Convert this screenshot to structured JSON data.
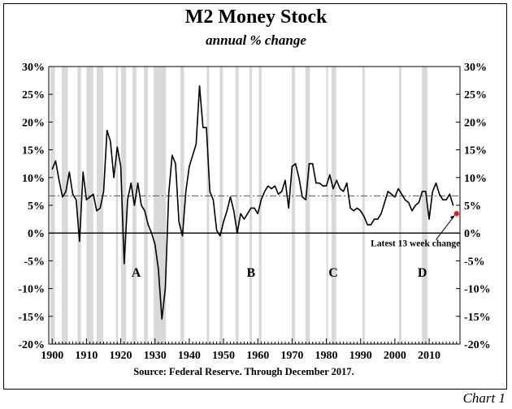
{
  "chart_data": {
    "type": "line",
    "title": "M2 Money Stock",
    "subtitle": "annual % change",
    "source": "Source: Federal Reserve.  Through December 2017.",
    "corner_label": "Chart 1",
    "xlim": [
      1899,
      2019
    ],
    "ylim": [
      -20,
      30
    ],
    "x_ticks": [
      1900,
      1910,
      1920,
      1930,
      1940,
      1950,
      1960,
      1970,
      1980,
      1990,
      2000,
      2010
    ],
    "y_ticks": [
      -20,
      -15,
      -10,
      -5,
      0,
      5,
      10,
      15,
      20,
      25,
      30
    ],
    "y_tick_labels": [
      "-20%",
      "-15%",
      "-10%",
      "-5%",
      "0%",
      "5%",
      "10%",
      "15%",
      "20%",
      "25%",
      "30%"
    ],
    "axes_on_both_sides": true,
    "mean_reference_line": 6.7,
    "recessions": [
      [
        1899.5,
        1900.8
      ],
      [
        1902.8,
        1904.6
      ],
      [
        1907.4,
        1908.4
      ],
      [
        1910.0,
        1912.0
      ],
      [
        1913.0,
        1914.9
      ],
      [
        1918.6,
        1919.2
      ],
      [
        1920.1,
        1921.6
      ],
      [
        1923.4,
        1924.6
      ],
      [
        1926.8,
        1927.9
      ],
      [
        1929.6,
        1933.2
      ],
      [
        1937.4,
        1938.5
      ],
      [
        1945.1,
        1945.8
      ],
      [
        1948.9,
        1949.8
      ],
      [
        1953.5,
        1954.4
      ],
      [
        1957.6,
        1958.3
      ],
      [
        1960.3,
        1961.1
      ],
      [
        1969.9,
        1970.9
      ],
      [
        1973.9,
        1975.2
      ],
      [
        1980.0,
        1980.5
      ],
      [
        1981.5,
        1982.9
      ],
      [
        1990.5,
        1991.2
      ],
      [
        2001.2,
        2001.9
      ],
      [
        2007.9,
        2009.5
      ]
    ],
    "series": [
      {
        "x": [
          1900,
          1901,
          1902,
          1903,
          1904,
          1905,
          1906,
          1907,
          1908,
          1909,
          1910,
          1911,
          1912,
          1913,
          1914,
          1915,
          1916,
          1917,
          1918,
          1919,
          1920,
          1921,
          1922,
          1923,
          1924,
          1925,
          1926,
          1927,
          1928,
          1929,
          1930,
          1931,
          1932,
          1933,
          1934,
          1935,
          1936,
          1937,
          1938,
          1939,
          1940,
          1941,
          1942,
          1943,
          1944,
          1945,
          1946,
          1947,
          1948,
          1949,
          1950,
          1951,
          1952,
          1953,
          1954,
          1955,
          1956,
          1957,
          1958,
          1959,
          1960,
          1961,
          1962,
          1963,
          1964,
          1965,
          1966,
          1967,
          1968,
          1969,
          1970,
          1971,
          1972,
          1973,
          1974,
          1975,
          1976,
          1977,
          1978,
          1979,
          1980,
          1981,
          1982,
          1983,
          1984,
          1985,
          1986,
          1987,
          1988,
          1989,
          1990,
          1991,
          1992,
          1993,
          1994,
          1995,
          1996,
          1997,
          1998,
          1999,
          2000,
          2001,
          2002,
          2003,
          2004,
          2005,
          2006,
          2007,
          2008,
          2009,
          2010,
          2011,
          2012,
          2013,
          2014,
          2015,
          2016,
          2017
        ],
        "values": [
          11.5,
          13.0,
          9.5,
          6.5,
          7.5,
          11.0,
          7.0,
          6.0,
          -1.5,
          11.0,
          6.0,
          6.5,
          7.0,
          4.0,
          4.5,
          7.5,
          18.5,
          16.5,
          10.0,
          15.5,
          12.0,
          -5.5,
          6.0,
          9.0,
          5.0,
          9.0,
          5.0,
          4.0,
          1.5,
          0.0,
          -2.0,
          -6.5,
          -15.5,
          -10.0,
          7.0,
          14.0,
          12.5,
          2.0,
          -0.5,
          7.5,
          12.0,
          14.0,
          16.0,
          26.5,
          19.0,
          19.0,
          7.5,
          6.0,
          0.5,
          -0.5,
          2.0,
          4.0,
          6.5,
          4.0,
          0.0,
          3.5,
          2.5,
          3.5,
          4.5,
          4.5,
          3.5,
          6.0,
          7.5,
          8.5,
          8.0,
          8.5,
          7.0,
          7.5,
          9.5,
          4.5,
          12.0,
          12.5,
          10.0,
          6.5,
          6.0,
          12.5,
          12.5,
          9.0,
          9.0,
          8.5,
          8.5,
          10.5,
          8.0,
          9.5,
          8.0,
          7.5,
          9.0,
          4.5,
          4.0,
          4.5,
          4.0,
          3.0,
          1.5,
          1.5,
          2.5,
          2.5,
          3.5,
          5.5,
          7.5,
          7.0,
          6.5,
          8.0,
          7.0,
          6.0,
          5.5,
          4.0,
          5.0,
          5.5,
          7.5,
          7.5,
          2.5,
          7.5,
          9.0,
          7.0,
          6.0,
          6.0,
          7.0,
          5.0
        ]
      }
    ],
    "latest_point": {
      "x": 2018,
      "y": 3.5
    },
    "annotations": {
      "latest": "Latest 13 week change",
      "letters": [
        {
          "text": "A",
          "x": 1924.5,
          "y": -7
        },
        {
          "text": "B",
          "x": 1958,
          "y": -7
        },
        {
          "text": "C",
          "x": 1982,
          "y": -7
        },
        {
          "text": "D",
          "x": 2008,
          "y": -7
        }
      ]
    }
  }
}
